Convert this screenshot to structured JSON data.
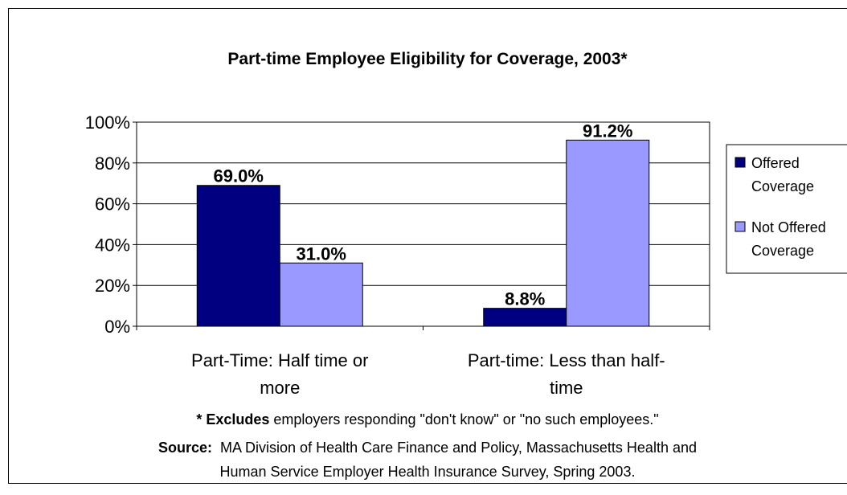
{
  "chart_data": {
    "type": "bar",
    "title": "Part-time Employee Eligibility for Coverage, 2003*",
    "categories": [
      [
        "Part-Time: Half time or",
        "more"
      ],
      [
        "Part-time: Less than half-",
        "time"
      ]
    ],
    "series": [
      {
        "name": [
          "Offered",
          "Coverage"
        ],
        "values": [
          69.0,
          8.8
        ],
        "labels": [
          "69.0%",
          "8.8%"
        ],
        "color": "#000080"
      },
      {
        "name": [
          "Not Offered",
          "Coverage"
        ],
        "values": [
          31.0,
          91.2
        ],
        "labels": [
          "31.0%",
          "91.2%"
        ],
        "color": "#9999FF"
      }
    ],
    "ylim": [
      0,
      100
    ],
    "yticks": [
      "0%",
      "20%",
      "40%",
      "60%",
      "80%",
      "100%"
    ],
    "grid": true,
    "legend_position": "right"
  },
  "footnote": {
    "bold": "* Excludes",
    "text": " employers responding \"don't know\" or \"no such employees.\""
  },
  "source": {
    "label": "Source:",
    "line1": "  MA Division of Health Care Finance and Policy, Massachusetts Health and",
    "line2": "Human Service Employer Health Insurance Survey, Spring 2003."
  }
}
